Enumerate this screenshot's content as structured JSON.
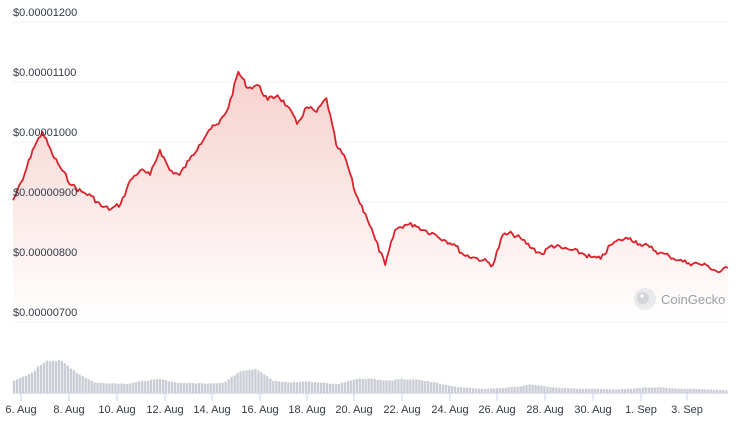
{
  "chart_data": {
    "type": "line",
    "title": "",
    "xlabel": "",
    "ylabel": "",
    "ylim": [
      7e-06,
      1.2e-05
    ],
    "y_ticks": [
      "$0.00001200",
      "$0.00001100",
      "$0.00001000",
      "$0.00000900",
      "$0.00000800",
      "$0.00000700"
    ],
    "y_tick_values": [
      1.2e-05,
      1.1e-05,
      1e-05,
      9e-06,
      8e-06,
      7e-06
    ],
    "x_ticks": [
      "6. Aug",
      "8. Aug",
      "10. Aug",
      "12. Aug",
      "14. Aug",
      "16. Aug",
      "18. Aug",
      "20. Aug",
      "22. Aug",
      "24. Aug",
      "26. Aug",
      "28. Aug",
      "30. Aug",
      "1. Sep",
      "3. Sep"
    ],
    "grid": true,
    "legend": null,
    "series": [
      {
        "name": "Price",
        "color": "#d9232b",
        "fill": "#f7d7d5",
        "points": [
          [
            "5 Aug",
            9.03e-06
          ],
          [
            "5 Aug",
            9.37e-06
          ],
          [
            "6 Aug",
            9.87e-06
          ],
          [
            "6 Aug",
            1.017e-05
          ],
          [
            "6 Aug",
            9.8e-06
          ],
          [
            "7 Aug",
            9.53e-06
          ],
          [
            "7 Aug",
            9.28e-06
          ],
          [
            "7 Aug",
            9.17e-06
          ],
          [
            "7 Aug",
            9.1e-06
          ],
          [
            "8 Aug",
            8.93e-06
          ],
          [
            "8 Aug",
            8.88e-06
          ],
          [
            "8 Aug",
            8.97e-06
          ],
          [
            "9 Aug",
            9.37e-06
          ],
          [
            "9 Aug",
            9.53e-06
          ],
          [
            "9 Aug",
            9.45e-06
          ],
          [
            "10 Aug",
            9.87e-06
          ],
          [
            "10 Aug",
            9.53e-06
          ],
          [
            "10 Aug",
            9.45e-06
          ],
          [
            "11 Aug",
            9.7e-06
          ],
          [
            "11 Aug",
            9.95e-06
          ],
          [
            "11 Aug",
            1.02e-05
          ],
          [
            "12 Aug",
            1.03e-05
          ],
          [
            "12 Aug",
            1.058e-05
          ],
          [
            "12 Aug",
            1.117e-05
          ],
          [
            "13 Aug",
            1.09e-05
          ],
          [
            "13 Aug",
            1.095e-05
          ],
          [
            "13 Aug",
            1.07e-05
          ],
          [
            "14 Aug",
            1.078e-05
          ],
          [
            "14 Aug",
            1.06e-05
          ],
          [
            "15 Aug",
            1.03e-05
          ],
          [
            "15 Aug",
            1.058e-05
          ],
          [
            "16 Aug",
            1.05e-05
          ],
          [
            "16 Aug",
            1.073e-05
          ],
          [
            "16 Aug",
            9.95e-06
          ],
          [
            "17 Aug",
            9.7e-06
          ],
          [
            "17 Aug",
            9.13e-06
          ],
          [
            "17 Aug",
            8.8e-06
          ],
          [
            "18 Aug",
            8.37e-06
          ],
          [
            "18 Aug",
            7.95e-06
          ],
          [
            "18 Aug",
            8.53e-06
          ],
          [
            "19 Aug",
            8.62e-06
          ],
          [
            "19 Aug",
            8.62e-06
          ],
          [
            "20 Aug",
            8.53e-06
          ],
          [
            "20 Aug",
            8.47e-06
          ],
          [
            "21 Aug",
            8.37e-06
          ],
          [
            "21 Aug",
            8.3e-06
          ],
          [
            "22 Aug",
            8.12e-06
          ],
          [
            "22 Aug",
            8.08e-06
          ],
          [
            "23 Aug",
            8.03e-06
          ],
          [
            "23 Aug",
            7.95e-06
          ],
          [
            "24 Aug",
            8.45e-06
          ],
          [
            "24 Aug",
            8.47e-06
          ],
          [
            "25 Aug",
            8.37e-06
          ],
          [
            "25 Aug",
            8.23e-06
          ],
          [
            "26 Aug",
            8.13e-06
          ],
          [
            "26 Aug",
            8.28e-06
          ],
          [
            "27 Aug",
            8.23e-06
          ],
          [
            "27 Aug",
            8.2e-06
          ],
          [
            "28 Aug",
            8.15e-06
          ],
          [
            "28 Aug",
            8.08e-06
          ],
          [
            "29 Aug",
            8.05e-06
          ],
          [
            "29 Aug",
            8.28e-06
          ],
          [
            "30 Aug",
            8.37e-06
          ],
          [
            "30 Aug",
            8.4e-06
          ],
          [
            "31 Aug",
            8.3e-06
          ],
          [
            "31 Aug",
            8.25e-06
          ],
          [
            "1 Sep",
            8.15e-06
          ],
          [
            "1 Sep",
            8.1e-06
          ],
          [
            "2 Sep",
            8.03e-06
          ],
          [
            "2 Sep",
            7.98e-06
          ],
          [
            "3 Sep",
            7.97e-06
          ],
          [
            "3 Sep",
            7.93e-06
          ],
          [
            "4 Sep",
            7.83e-06
          ],
          [
            "4 Sep",
            7.9e-06
          ]
        ]
      }
    ],
    "volume_series": {
      "name": "Volume",
      "color": "#c9ccd4",
      "relative_heights": [
        0.35,
        0.55,
        0.95,
        0.9,
        0.55,
        0.3,
        0.28,
        0.27,
        0.35,
        0.4,
        0.3,
        0.28,
        0.28,
        0.3,
        0.65,
        0.7,
        0.35,
        0.3,
        0.33,
        0.3,
        0.25,
        0.4,
        0.42,
        0.35,
        0.4,
        0.38,
        0.3,
        0.2,
        0.15,
        0.12,
        0.14,
        0.18,
        0.25,
        0.18,
        0.14,
        0.12,
        0.12,
        0.1,
        0.12,
        0.16,
        0.16,
        0.12,
        0.12,
        0.1,
        0.08
      ]
    }
  },
  "watermark": {
    "label": "CoinGecko",
    "icon": "coingecko-gecko-icon"
  },
  "colors": {
    "line": "#d9232b",
    "area_top": "#f6d3d0",
    "area_bottom": "#ffffff",
    "volume": "#c9ccd4",
    "grid": "#efeff2",
    "axis_text": "#333a45"
  }
}
